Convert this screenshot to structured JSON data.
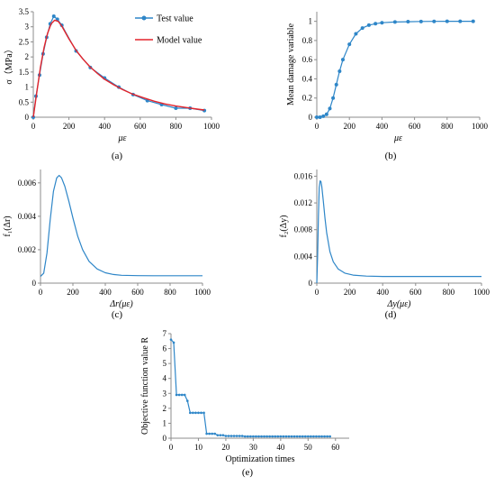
{
  "colors": {
    "blue": "#2e86c8",
    "red": "#e3242b",
    "axis": "#8c8c8c"
  },
  "chart_data": [
    {
      "id": "a",
      "type": "line",
      "panel_label": "(a)",
      "xlabel": "με",
      "ylabel": "σ（MPa）",
      "xlim": [
        0,
        1000
      ],
      "ylim": [
        0,
        3.5
      ],
      "xticks": [
        0,
        200,
        400,
        600,
        800,
        1000
      ],
      "yticks": [
        0,
        0.5,
        1,
        1.5,
        2,
        2.5,
        3,
        3.5
      ],
      "ytick_labels": [
        "0",
        "0.5",
        "1",
        "1.5",
        "2",
        "2.5",
        "3",
        "3.5"
      ],
      "legend_position": "top-right",
      "series": [
        {
          "name": "Test value",
          "style": "line-markers",
          "color": "#2e86c8",
          "x": [
            0,
            15,
            35,
            55,
            75,
            95,
            115,
            135,
            160,
            240,
            320,
            400,
            480,
            560,
            640,
            720,
            800,
            880,
            960
          ],
          "y": [
            0,
            0.7,
            1.4,
            2.1,
            2.65,
            3.1,
            3.35,
            3.25,
            3.05,
            2.2,
            1.65,
            1.3,
            1.0,
            0.75,
            0.55,
            0.42,
            0.3,
            0.3,
            0.22
          ]
        },
        {
          "name": "Model value",
          "style": "line",
          "color": "#e3242b",
          "x": [
            0,
            20,
            40,
            60,
            80,
            100,
            120,
            140,
            160,
            200,
            240,
            280,
            320,
            360,
            400,
            450,
            500,
            560,
            620,
            680,
            740,
            800,
            860,
            920,
            960
          ],
          "y": [
            0,
            0.85,
            1.65,
            2.3,
            2.78,
            3.1,
            3.22,
            3.18,
            3.02,
            2.6,
            2.22,
            1.92,
            1.66,
            1.45,
            1.26,
            1.08,
            0.92,
            0.76,
            0.64,
            0.53,
            0.44,
            0.37,
            0.32,
            0.27,
            0.24
          ]
        }
      ]
    },
    {
      "id": "b",
      "type": "line",
      "panel_label": "(b)",
      "xlabel": "με",
      "ylabel": "Mean damage variable",
      "xlim": [
        0,
        1000
      ],
      "ylim": [
        0,
        1.1
      ],
      "xticks": [
        0,
        200,
        400,
        600,
        800,
        1000
      ],
      "yticks": [
        0,
        0.2,
        0.4,
        0.6,
        0.8,
        1
      ],
      "ytick_labels": [
        "0",
        "0.2",
        "0.4",
        "0.6",
        "0.8",
        "1"
      ],
      "series": [
        {
          "name": "",
          "style": "line-markers",
          "color": "#2e86c8",
          "x": [
            0,
            20,
            40,
            60,
            80,
            100,
            120,
            140,
            160,
            200,
            240,
            280,
            320,
            360,
            400,
            480,
            560,
            640,
            720,
            800,
            880,
            960
          ],
          "y": [
            0,
            0,
            0.01,
            0.03,
            0.09,
            0.2,
            0.34,
            0.48,
            0.6,
            0.76,
            0.87,
            0.93,
            0.96,
            0.975,
            0.985,
            0.993,
            0.996,
            0.998,
            0.999,
            1.0,
            1.0,
            1.0
          ]
        }
      ]
    },
    {
      "id": "c",
      "type": "line",
      "panel_label": "(c)",
      "xlabel": "Δr(με)",
      "ylabel": "f₁(Δr)",
      "xlim": [
        0,
        1000
      ],
      "ylim": [
        0,
        0.0068
      ],
      "xticks": [
        0,
        200,
        400,
        600,
        800,
        1000
      ],
      "yticks": [
        0,
        0.002,
        0.004,
        0.006
      ],
      "ytick_labels": [
        "0",
        "0.002",
        "0.004",
        "0.006"
      ],
      "series": [
        {
          "name": "",
          "style": "line",
          "color": "#2e86c8",
          "x": [
            0,
            20,
            40,
            60,
            80,
            100,
            115,
            130,
            150,
            175,
            200,
            230,
            260,
            300,
            350,
            400,
            450,
            500,
            600,
            700,
            800,
            1000
          ],
          "y": [
            0.0004,
            0.0006,
            0.0018,
            0.0038,
            0.0055,
            0.0063,
            0.00645,
            0.0063,
            0.0058,
            0.0049,
            0.0039,
            0.0028,
            0.002,
            0.0013,
            0.00085,
            0.00062,
            0.00052,
            0.00047,
            0.00045,
            0.00044,
            0.00044,
            0.00044
          ]
        }
      ]
    },
    {
      "id": "d",
      "type": "line",
      "panel_label": "(d)",
      "xlabel": "Δy(με)",
      "ylabel": "f₂(Δy)",
      "xlim": [
        0,
        1000
      ],
      "ylim": [
        0,
        0.017
      ],
      "xticks": [
        0,
        200,
        400,
        600,
        800,
        1000
      ],
      "yticks": [
        0,
        0.004,
        0.008,
        0.012,
        0.016
      ],
      "ytick_labels": [
        "0",
        "0.004",
        "0.008",
        "0.012",
        "0.016"
      ],
      "series": [
        {
          "name": "",
          "style": "line",
          "color": "#2e86c8",
          "x": [
            0,
            5,
            10,
            15,
            20,
            25,
            30,
            40,
            50,
            60,
            80,
            100,
            130,
            170,
            220,
            300,
            400,
            600,
            800,
            1000
          ],
          "y": [
            0,
            0.004,
            0.01,
            0.0143,
            0.0153,
            0.0152,
            0.0145,
            0.0122,
            0.0097,
            0.0075,
            0.0047,
            0.0032,
            0.0021,
            0.0015,
            0.0012,
            0.00105,
            0.001,
            0.001,
            0.001,
            0.001
          ]
        }
      ]
    },
    {
      "id": "e",
      "type": "line",
      "panel_label": "(e)",
      "xlabel": "Optimization times",
      "ylabel": "Objective function value R",
      "xlim": [
        0,
        65
      ],
      "ylim": [
        0,
        7
      ],
      "xticks": [
        0,
        10,
        20,
        30,
        40,
        50,
        60
      ],
      "yticks": [
        0,
        1,
        2,
        3,
        4,
        5,
        6,
        7
      ],
      "ytick_labels": [
        "0",
        "1",
        "2",
        "3",
        "4",
        "5",
        "6",
        "7"
      ],
      "series": [
        {
          "name": "",
          "style": "line-markers",
          "color": "#2e86c8",
          "x": [
            0,
            1,
            2,
            3,
            4,
            5,
            6,
            7,
            8,
            9,
            10,
            11,
            12,
            13,
            14,
            15,
            16,
            17,
            18,
            19,
            20,
            21,
            22,
            23,
            24,
            25,
            26,
            27,
            28,
            29,
            30,
            31,
            32,
            33,
            34,
            35,
            36,
            37,
            38,
            39,
            40,
            41,
            42,
            43,
            44,
            45,
            46,
            47,
            48,
            49,
            50,
            51,
            52,
            53,
            54,
            55,
            56,
            57,
            58
          ],
          "y": [
            6.6,
            6.4,
            2.9,
            2.9,
            2.9,
            2.9,
            2.5,
            1.7,
            1.7,
            1.7,
            1.7,
            1.7,
            1.7,
            0.3,
            0.3,
            0.3,
            0.3,
            0.2,
            0.2,
            0.2,
            0.15,
            0.15,
            0.15,
            0.15,
            0.15,
            0.15,
            0.15,
            0.12,
            0.12,
            0.12,
            0.12,
            0.12,
            0.12,
            0.12,
            0.12,
            0.12,
            0.12,
            0.12,
            0.12,
            0.12,
            0.12,
            0.12,
            0.12,
            0.12,
            0.12,
            0.12,
            0.12,
            0.12,
            0.12,
            0.12,
            0.12,
            0.12,
            0.12,
            0.12,
            0.12,
            0.12,
            0.12,
            0.12,
            0.12
          ]
        }
      ]
    }
  ]
}
